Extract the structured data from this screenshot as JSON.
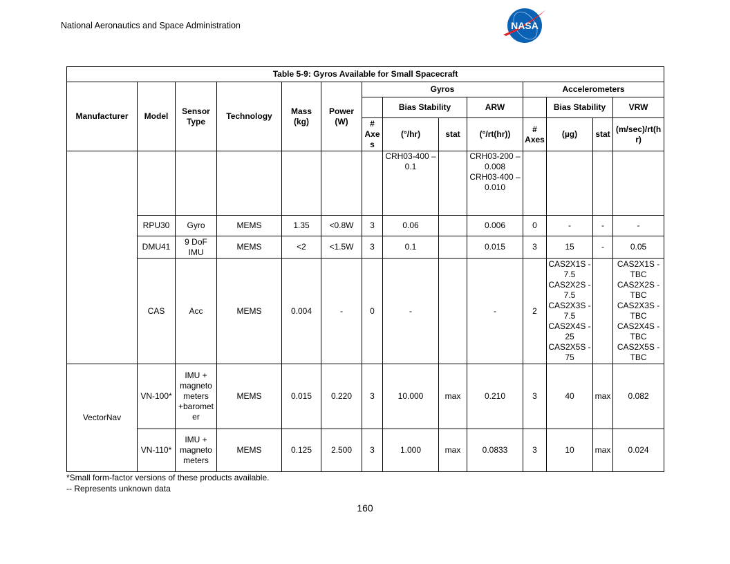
{
  "header": {
    "organization": "National Aeronautics and Space Administration",
    "logo_text": "NASA"
  },
  "table": {
    "title": "Table 5-9: Gyros Available for Small Spacecraft",
    "columns": {
      "manufacturer": "Manufacturer",
      "model": "Model",
      "sensor_type": "Sensor Type",
      "technology": "Technology",
      "mass": "Mass (kg)",
      "power": "Power (W)",
      "gyros": "Gyros",
      "accelerometers": "Accelerometers",
      "gyro_bias_stability": "Bias Stability",
      "gyro_arw": "ARW",
      "acc_bias_stability": "Bias Stability",
      "acc_vrw": "VRW",
      "gyro_axes": "# Axes",
      "gyro_bias_unit": "(°/hr)",
      "gyro_stat": "stat",
      "gyro_arw_unit": "(°/rt(hr))",
      "acc_axes": "# Axes",
      "acc_bias_unit": "(µg)",
      "acc_stat": "stat",
      "acc_vrw_unit": "(m/sec)/rt(hr)"
    },
    "manufacturers": [
      "",
      "VectorNav"
    ],
    "rows": [
      {
        "model": "",
        "sensor": "",
        "tech": "",
        "mass": "",
        "power": "",
        "g_axes": "",
        "g_bias": "CRH03-400 – 0.1",
        "g_stat": "",
        "g_arw": "CRH03-200 – 0.008\nCRH03-400 – 0.010",
        "a_axes": "",
        "a_bias": "",
        "a_stat": "",
        "a_vrw": ""
      },
      {
        "model": "RPU30",
        "sensor": "Gyro",
        "tech": "MEMS",
        "mass": "1.35",
        "power": "<0.8W",
        "g_axes": "3",
        "g_bias": "0.06",
        "g_stat": "",
        "g_arw": "0.006",
        "a_axes": "0",
        "a_bias": "-",
        "a_stat": "-",
        "a_vrw": "-"
      },
      {
        "model": "DMU41",
        "sensor": "9 DoF IMU",
        "tech": "MEMS",
        "mass": "<2",
        "power": "<1.5W",
        "g_axes": "3",
        "g_bias": "0.1",
        "g_stat": "",
        "g_arw": "0.015",
        "a_axes": "3",
        "a_bias": "15",
        "a_stat": "-",
        "a_vrw": "0.05"
      },
      {
        "model": "CAS",
        "sensor": "Acc",
        "tech": "MEMS",
        "mass": "0.004",
        "power": "-",
        "g_axes": "0",
        "g_bias": "-",
        "g_stat": "",
        "g_arw": "-",
        "a_axes": "2",
        "a_bias": "CAS2X1S - 7.5\nCAS2X2S - 7.5\nCAS2X3S - 7.5\nCAS2X4S - 25\nCAS2X5S - 75",
        "a_stat": "",
        "a_vrw": "CAS2X1S - TBC\nCAS2X2S - TBC\nCAS2X3S - TBC\nCAS2X4S - TBC\nCAS2X5S - TBC"
      },
      {
        "model": "VN-100*",
        "sensor": "IMU + magnetometers +barometer",
        "tech": "MEMS",
        "mass": "0.015",
        "power": "0.220",
        "g_axes": "3",
        "g_bias": "10.000",
        "g_stat": "max",
        "g_arw": "0.210",
        "a_axes": "3",
        "a_bias": "40",
        "a_stat": "max",
        "a_vrw": "0.082"
      },
      {
        "model": "VN-110*",
        "sensor": "IMU + magnetometers",
        "tech": "MEMS",
        "mass": "0.125",
        "power": "2.500",
        "g_axes": "3",
        "g_bias": "1.000",
        "g_stat": "max",
        "g_arw": "0.0833",
        "a_axes": "3",
        "a_bias": "10",
        "a_stat": "max",
        "a_vrw": "0.024"
      }
    ]
  },
  "notes": [
    "*Small form-factor versions of these products available.",
    "-- Represents unknown data"
  ],
  "page_number": "160",
  "colors": {
    "nasa_blue": "#0b62b5",
    "nasa_red": "#e0242a"
  }
}
